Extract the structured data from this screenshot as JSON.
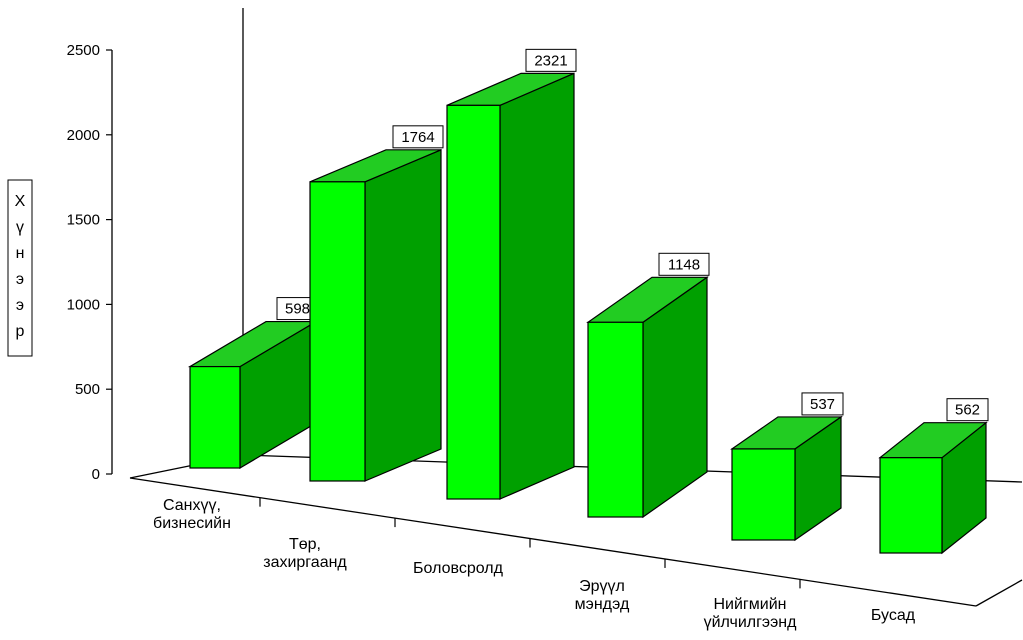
{
  "chart_data": {
    "type": "bar",
    "title": "",
    "xlabel": "",
    "ylabel": "Хүнээр",
    "ylim": [
      0,
      2500
    ],
    "yticks": [
      0,
      500,
      1000,
      1500,
      2000,
      2500
    ],
    "grid": false,
    "legend": "none",
    "categories": [
      [
        "Санхүү,",
        "бизнесийн"
      ],
      [
        "Төр,",
        "захиргаанд"
      ],
      [
        "Боловсролд"
      ],
      [
        "Эрүүл",
        "мэндэд"
      ],
      [
        "Нийгмийн",
        "үйлчилгээнд"
      ],
      [
        "Бусад"
      ]
    ],
    "values": [
      598,
      1764,
      2321,
      1148,
      537,
      562
    ],
    "data_labels": [
      "598",
      "1764",
      "2321",
      "1148",
      "537",
      "562"
    ],
    "colors": {
      "front": "#00ff00",
      "top": "#22cc22",
      "side": "#00a000",
      "stroke": "#000000"
    }
  }
}
